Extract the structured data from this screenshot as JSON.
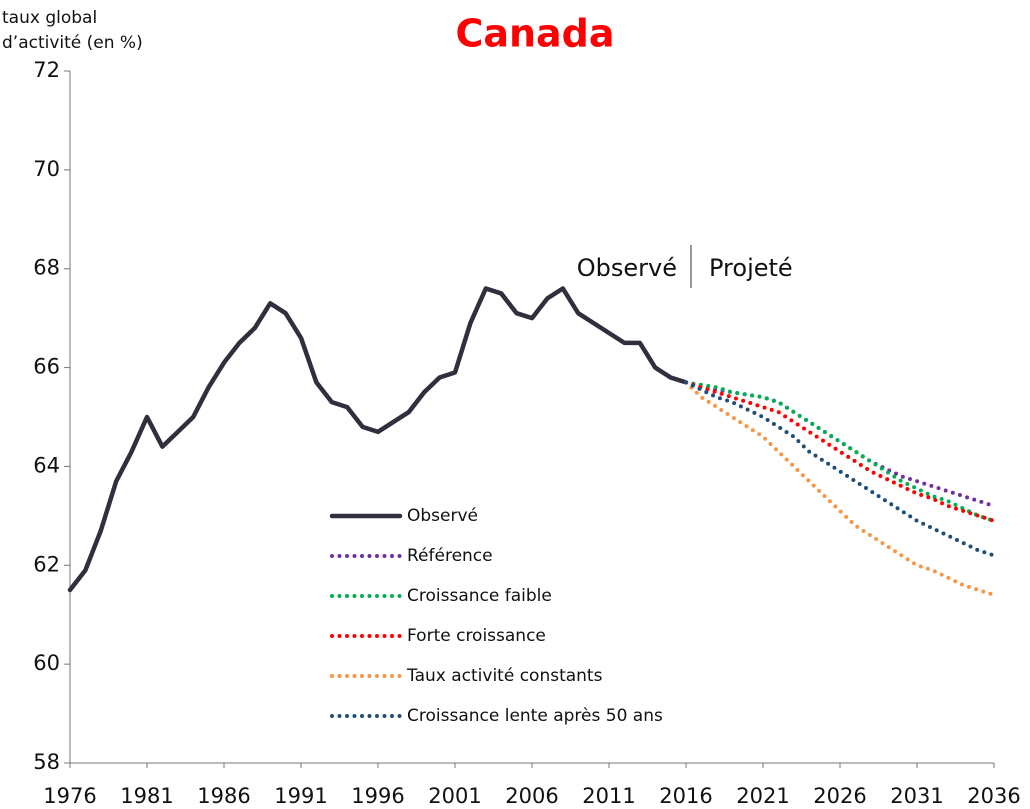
{
  "chart_data": {
    "type": "line",
    "title": "Canada",
    "y_label": [
      "taux global",
      "d’activité (en %)"
    ],
    "annotations": [
      "Observé",
      "Projeté"
    ],
    "x": [
      1976,
      1977,
      1978,
      1979,
      1980,
      1981,
      1982,
      1983,
      1984,
      1985,
      1986,
      1987,
      1988,
      1989,
      1990,
      1991,
      1992,
      1993,
      1994,
      1995,
      1996,
      1997,
      1998,
      1999,
      2000,
      2001,
      2002,
      2003,
      2004,
      2005,
      2006,
      2007,
      2008,
      2009,
      2010,
      2011,
      2012,
      2013,
      2014,
      2015,
      2016,
      2017,
      2018,
      2019,
      2020,
      2021,
      2022,
      2023,
      2024,
      2025,
      2026,
      2027,
      2028,
      2029,
      2030,
      2031,
      2032,
      2033,
      2034,
      2035,
      2036
    ],
    "xlim": [
      1976,
      2036
    ],
    "xticks": [
      1976,
      1981,
      1986,
      1991,
      1996,
      2001,
      2006,
      2011,
      2016,
      2021,
      2026,
      2031,
      2036
    ],
    "ylim": [
      58,
      72
    ],
    "yticks": [
      58,
      60,
      62,
      64,
      66,
      68,
      70,
      72
    ],
    "grid": false,
    "legend": "center",
    "series": [
      {
        "name": "Observé",
        "color": "#2f2f3d",
        "style": "solid",
        "values": [
          61.5,
          61.9,
          62.7,
          63.7,
          64.3,
          65.0,
          64.4,
          64.7,
          65.0,
          65.6,
          66.1,
          66.5,
          66.8,
          67.3,
          67.1,
          66.6,
          65.7,
          65.3,
          65.2,
          64.8,
          64.7,
          64.9,
          65.1,
          65.5,
          65.8,
          65.9,
          66.9,
          67.6,
          67.5,
          67.1,
          67.0,
          67.4,
          67.6,
          67.1,
          66.9,
          66.7,
          66.5,
          66.5,
          66.0,
          65.8,
          65.7,
          null,
          null,
          null,
          null,
          null,
          null,
          null,
          null,
          null,
          null,
          null,
          null,
          null,
          null,
          null,
          null,
          null,
          null,
          null,
          null
        ]
      },
      {
        "name": "Référence",
        "color": "#7030a0",
        "style": "dotted",
        "values": [
          null,
          null,
          null,
          null,
          null,
          null,
          null,
          null,
          null,
          null,
          null,
          null,
          null,
          null,
          null,
          null,
          null,
          null,
          null,
          null,
          null,
          null,
          null,
          null,
          null,
          null,
          null,
          null,
          null,
          null,
          null,
          null,
          null,
          null,
          null,
          null,
          null,
          null,
          null,
          null,
          65.7,
          65.6,
          65.55,
          65.5,
          65.45,
          65.4,
          65.3,
          65.1,
          64.9,
          64.7,
          64.5,
          64.3,
          64.1,
          63.95,
          63.8,
          63.7,
          63.6,
          63.5,
          63.4,
          63.3,
          63.2
        ]
      },
      {
        "name": "Croissance faible",
        "color": "#00b050",
        "style": "dotted",
        "values": [
          null,
          null,
          null,
          null,
          null,
          null,
          null,
          null,
          null,
          null,
          null,
          null,
          null,
          null,
          null,
          null,
          null,
          null,
          null,
          null,
          null,
          null,
          null,
          null,
          null,
          null,
          null,
          null,
          null,
          null,
          null,
          null,
          null,
          null,
          null,
          null,
          null,
          null,
          null,
          null,
          65.7,
          65.65,
          65.6,
          65.5,
          65.45,
          65.4,
          65.3,
          65.1,
          64.9,
          64.7,
          64.5,
          64.3,
          64.1,
          63.9,
          63.7,
          63.55,
          63.4,
          63.3,
          63.15,
          63.0,
          62.9
        ]
      },
      {
        "name": "Forte croissance",
        "color": "#ff0000",
        "style": "dotted",
        "values": [
          null,
          null,
          null,
          null,
          null,
          null,
          null,
          null,
          null,
          null,
          null,
          null,
          null,
          null,
          null,
          null,
          null,
          null,
          null,
          null,
          null,
          null,
          null,
          null,
          null,
          null,
          null,
          null,
          null,
          null,
          null,
          null,
          null,
          null,
          null,
          null,
          null,
          null,
          null,
          null,
          65.7,
          65.6,
          65.5,
          65.4,
          65.3,
          65.2,
          65.1,
          64.9,
          64.7,
          64.5,
          64.3,
          64.1,
          63.9,
          63.75,
          63.6,
          63.45,
          63.35,
          63.2,
          63.1,
          63.0,
          62.9
        ]
      },
      {
        "name": "Taux activité constants",
        "color": "#f79646",
        "style": "dotted",
        "values": [
          null,
          null,
          null,
          null,
          null,
          null,
          null,
          null,
          null,
          null,
          null,
          null,
          null,
          null,
          null,
          null,
          null,
          null,
          null,
          null,
          null,
          null,
          null,
          null,
          null,
          null,
          null,
          null,
          null,
          null,
          null,
          null,
          null,
          null,
          null,
          null,
          null,
          null,
          null,
          null,
          65.7,
          65.4,
          65.2,
          65.0,
          64.8,
          64.6,
          64.3,
          64.0,
          63.7,
          63.4,
          63.1,
          62.8,
          62.6,
          62.4,
          62.2,
          62.0,
          61.9,
          61.75,
          61.6,
          61.5,
          61.4
        ]
      },
      {
        "name": "Croissance lente après 50 ans",
        "color": "#1f4e79",
        "style": "dotted",
        "values": [
          null,
          null,
          null,
          null,
          null,
          null,
          null,
          null,
          null,
          null,
          null,
          null,
          null,
          null,
          null,
          null,
          null,
          null,
          null,
          null,
          null,
          null,
          null,
          null,
          null,
          null,
          null,
          null,
          null,
          null,
          null,
          null,
          null,
          null,
          null,
          null,
          null,
          null,
          null,
          null,
          65.7,
          65.55,
          65.4,
          65.3,
          65.15,
          65.0,
          64.8,
          64.6,
          64.3,
          64.1,
          63.9,
          63.7,
          63.5,
          63.3,
          63.1,
          62.9,
          62.75,
          62.6,
          62.45,
          62.3,
          62.2
        ]
      }
    ]
  }
}
